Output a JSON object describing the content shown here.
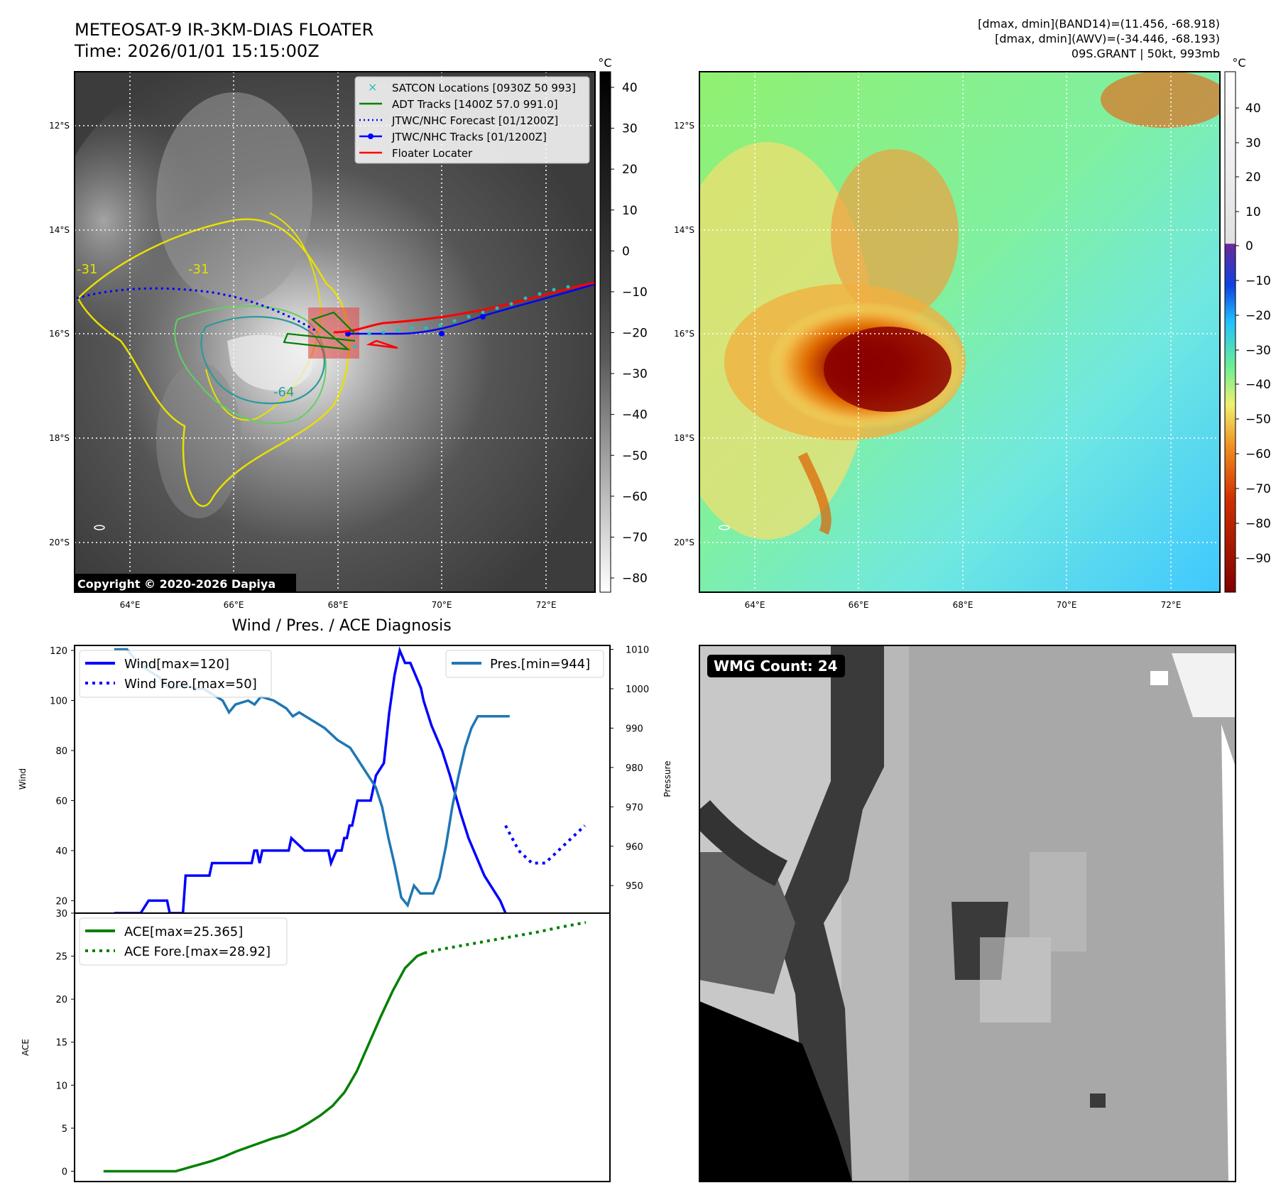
{
  "header": {
    "title": "METEOSAT-9 IR-3KM-DIAS FLOATER",
    "time": "Time: 2026/01/01 15:15:00Z",
    "stats_line1": "[dmax, dmin](BAND14)=(11.456, -68.918)",
    "stats_line2": "[dmax, dmin](AWV)=(-34.446, -68.193)",
    "stats_line3": "09S.GRANT | 50kt, 993mb"
  },
  "map": {
    "lat_labels": [
      "12°S",
      "14°S",
      "16°S",
      "18°S",
      "20°S"
    ],
    "lon_labels": [
      "64°E",
      "66°E",
      "68°E",
      "70°E",
      "72°E"
    ],
    "copyright": "Copyright © 2020-2026 Dapiya",
    "contour_labels": [
      "-31",
      "-64",
      "-31"
    ],
    "legend": [
      {
        "label": "SATCON Locations [0930Z 50 993]",
        "color": "#20c0c0"
      },
      {
        "label": "ADT Tracks [1400Z 57.0 991.0]",
        "color": "#008000"
      },
      {
        "label": "JTWC/NHC Forecast [01/1200Z]",
        "color": "#0000ff"
      },
      {
        "label": "JTWC/NHC Tracks [01/1200Z]",
        "color": "#0000ff"
      },
      {
        "label": "Floater Locater",
        "color": "#ff0000"
      }
    ]
  },
  "colorbar_ir": {
    "unit": "°C",
    "ticks": [
      "40",
      "30",
      "20",
      "10",
      "0",
      "−10",
      "−20",
      "−30",
      "−40",
      "−50",
      "−60",
      "−70",
      "−80"
    ]
  },
  "colorbar_awv": {
    "unit": "°C",
    "ticks": [
      "40",
      "30",
      "20",
      "10",
      "0",
      "−10",
      "−20",
      "−30",
      "−40",
      "−50",
      "−60",
      "−70",
      "−80",
      "−90"
    ]
  },
  "wmg": {
    "label": "WMG Count: 24"
  },
  "chart_data": [
    {
      "type": "line",
      "title": "Wind / Pres. / ACE Diagnosis",
      "ylabel": "Wind",
      "ylabel_right": "Pressure",
      "ylim": [
        15,
        122
      ],
      "ylim_right": [
        943,
        1011
      ],
      "yticks": [
        20,
        40,
        60,
        80,
        100,
        120
      ],
      "yticks_right": [
        950,
        960,
        970,
        980,
        990,
        1000,
        1010
      ],
      "series": [
        {
          "name": "Wind[max=120]",
          "color": "#0000ff",
          "style": "solid",
          "x": [
            0,
            10,
            13,
            20,
            21,
            26,
            27,
            36,
            37,
            52,
            53,
            54,
            55,
            56,
            57,
            58,
            66,
            67,
            72,
            73,
            81,
            82,
            84,
            85,
            86,
            87,
            88,
            89,
            90,
            91,
            92,
            97,
            98,
            99,
            102,
            103,
            104,
            106,
            108,
            110,
            111,
            112,
            114,
            116,
            117,
            120,
            124,
            127,
            131,
            134,
            136,
            138,
            140,
            143,
            146,
            148
          ],
          "y": [
            15,
            15,
            20,
            20,
            15,
            15,
            30,
            30,
            35,
            35,
            40,
            40,
            35,
            40,
            40,
            40,
            40,
            45,
            40,
            40,
            40,
            35,
            40,
            40,
            40,
            45,
            45,
            50,
            50,
            55,
            60,
            60,
            65,
            70,
            75,
            85,
            95,
            110,
            120,
            115,
            115,
            115,
            110,
            105,
            100,
            90,
            80,
            70,
            55,
            45,
            40,
            35,
            30,
            25,
            20,
            15
          ]
        },
        {
          "name": "Wind Fore.[max=50]",
          "color": "#0000ff",
          "style": "dotted",
          "x": [
            0,
            1,
            2,
            3,
            4,
            5,
            6
          ],
          "y": [
            50,
            40,
            35,
            35,
            40,
            45,
            50
          ]
        },
        {
          "name": "Pres.[min=944]",
          "color": "#1f77b4",
          "style": "solid",
          "axis": "right",
          "x": [
            0,
            4,
            6,
            10,
            14,
            16,
            18,
            22,
            26,
            28,
            30,
            34,
            36,
            38,
            42,
            44,
            46,
            50,
            54,
            56,
            58,
            62,
            66,
            70,
            74,
            78,
            82,
            84,
            86,
            88,
            90,
            92,
            94,
            96,
            98,
            100,
            102,
            104,
            106,
            108,
            110,
            112,
            114,
            116,
            118,
            120,
            122,
            124
          ],
          "y": [
            1010,
            1010,
            1008,
            1005,
            1003,
            1001,
            1000,
            1001,
            1000,
            1000,
            999,
            997,
            994,
            996,
            997,
            996,
            998,
            997,
            995,
            993,
            994,
            992,
            990,
            987,
            985,
            980,
            975,
            970,
            962,
            955,
            947,
            945,
            950,
            948,
            948,
            948,
            952,
            960,
            970,
            978,
            985,
            990,
            993,
            993,
            993,
            993,
            993,
            993
          ]
        }
      ],
      "legend_left": [
        "Wind[max=120]",
        "Wind Fore.[max=50]"
      ],
      "legend_right": [
        "Pres.[min=944]"
      ]
    },
    {
      "type": "line",
      "ylabel": "ACE",
      "ylim": [
        -1.2,
        30
      ],
      "yticks": [
        0,
        5,
        10,
        15,
        20,
        25,
        30
      ],
      "series": [
        {
          "name": "ACE[max=25.365]",
          "color": "#008000",
          "style": "solid",
          "x": [
            0,
            30,
            35,
            40,
            45,
            50,
            55,
            60,
            65,
            70,
            75,
            80,
            85,
            90,
            95,
            100,
            105,
            110,
            115,
            120,
            125,
            130,
            133
          ],
          "y": [
            0,
            0,
            0.4,
            0.8,
            1.2,
            1.7,
            2.3,
            2.8,
            3.3,
            3.8,
            4.2,
            4.8,
            5.6,
            6.5,
            7.6,
            9.2,
            11.6,
            14.8,
            18.0,
            21.0,
            23.6,
            25.0,
            25.365
          ]
        },
        {
          "name": "ACE Fore.[max=28.92]",
          "color": "#008000",
          "style": "dotted",
          "x": [
            133,
            140,
            150,
            160,
            170,
            180,
            190,
            200
          ],
          "y": [
            25.365,
            25.8,
            26.3,
            26.8,
            27.3,
            27.8,
            28.4,
            28.92
          ]
        }
      ],
      "legend": [
        "ACE[max=25.365]",
        "ACE Fore.[max=28.92]"
      ]
    }
  ]
}
